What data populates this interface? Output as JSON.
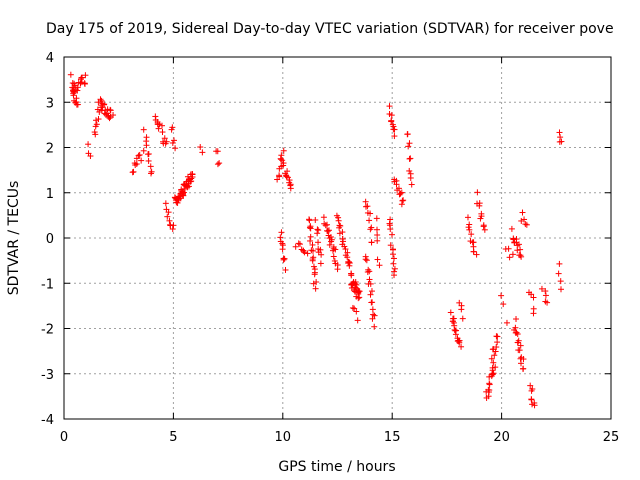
{
  "chart_data": {
    "type": "scatter",
    "title": "Day 175 of 2019, Sidereal Day-to-day VTEC variation (SDTVAR) for receiver pove",
    "xlabel": "GPS time / hours",
    "ylabel": "SDTVAR / TECUs",
    "xlim": [
      0,
      25
    ],
    "ylim": [
      -4,
      4
    ],
    "xticks": [
      "0",
      "5",
      "10",
      "15",
      "20",
      "25"
    ],
    "yticks": [
      "-4",
      "-3",
      "-2",
      "-1",
      "0",
      "1",
      "2",
      "3",
      "4"
    ],
    "grid": true,
    "marker": "plus",
    "color": "#ff0000",
    "clusters": [
      {
        "x0": 0.35,
        "x1": 0.6,
        "y0": 3.5,
        "y1": 2.9,
        "n": 14
      },
      {
        "x0": 0.4,
        "x1": 1.0,
        "y0": 3.3,
        "y1": 3.5,
        "n": 16
      },
      {
        "x0": 1.1,
        "x1": 1.25,
        "y0": 2.0,
        "y1": 1.9,
        "n": 3
      },
      {
        "x0": 1.4,
        "x1": 1.6,
        "y0": 2.3,
        "y1": 2.9,
        "n": 8
      },
      {
        "x0": 1.6,
        "x1": 2.2,
        "y0": 3.0,
        "y1": 2.7,
        "n": 22
      },
      {
        "x0": 3.1,
        "x1": 3.6,
        "y0": 1.5,
        "y1": 1.85,
        "n": 10
      },
      {
        "x0": 3.7,
        "x1": 4.0,
        "y0": 2.3,
        "y1": 1.4,
        "n": 10
      },
      {
        "x0": 4.15,
        "x1": 4.5,
        "y0": 2.65,
        "y1": 2.4,
        "n": 9
      },
      {
        "x0": 4.5,
        "x1": 4.75,
        "y0": 2.0,
        "y1": 2.2,
        "n": 5
      },
      {
        "x0": 4.9,
        "x1": 5.05,
        "y0": 2.4,
        "y1": 2.0,
        "n": 5
      },
      {
        "x0": 4.6,
        "x1": 5.0,
        "y0": 0.7,
        "y1": 0.2,
        "n": 9
      },
      {
        "x0": 5.1,
        "x1": 5.9,
        "y0": 0.8,
        "y1": 1.4,
        "n": 50
      },
      {
        "x0": 6.2,
        "x1": 6.3,
        "y0": 2.1,
        "y1": 1.8,
        "n": 2
      },
      {
        "x0": 7.0,
        "x1": 7.05,
        "y0": 2.0,
        "y1": 1.6,
        "n": 4
      },
      {
        "x0": 9.8,
        "x1": 10.0,
        "y0": 1.3,
        "y1": 1.9,
        "n": 10
      },
      {
        "x0": 10.0,
        "x1": 10.4,
        "y0": 1.6,
        "y1": 1.1,
        "n": 12
      },
      {
        "x0": 9.9,
        "x1": 10.1,
        "y0": 0.1,
        "y1": -0.6,
        "n": 10
      },
      {
        "x0": 10.6,
        "x1": 11.1,
        "y0": -0.1,
        "y1": -0.45,
        "n": 8
      },
      {
        "x0": 11.2,
        "x1": 11.5,
        "y0": 0.45,
        "y1": -1.1,
        "n": 20
      },
      {
        "x0": 11.5,
        "x1": 11.8,
        "y0": 0.3,
        "y1": -0.5,
        "n": 10
      },
      {
        "x0": 11.9,
        "x1": 12.5,
        "y0": 0.4,
        "y1": -0.6,
        "n": 22
      },
      {
        "x0": 12.5,
        "x1": 13.1,
        "y0": 0.5,
        "y1": -0.8,
        "n": 24
      },
      {
        "x0": 13.1,
        "x1": 13.5,
        "y0": -0.9,
        "y1": -1.3,
        "n": 26
      },
      {
        "x0": 13.2,
        "x1": 13.4,
        "y0": -1.6,
        "y1": -1.8,
        "n": 4
      },
      {
        "x0": 13.8,
        "x1": 14.1,
        "y0": 0.9,
        "y1": -0.1,
        "n": 10
      },
      {
        "x0": 13.8,
        "x1": 14.2,
        "y0": -0.4,
        "y1": -1.9,
        "n": 18
      },
      {
        "x0": 14.3,
        "x1": 14.4,
        "y0": 0.5,
        "y1": -0.6,
        "n": 6
      },
      {
        "x0": 14.9,
        "x1": 15.1,
        "y0": 2.85,
        "y1": 2.3,
        "n": 10
      },
      {
        "x0": 14.9,
        "x1": 15.1,
        "y0": 0.4,
        "y1": -0.9,
        "n": 14
      },
      {
        "x0": 15.1,
        "x1": 15.5,
        "y0": 1.3,
        "y1": 0.8,
        "n": 12
      },
      {
        "x0": 15.7,
        "x1": 15.9,
        "y0": 2.35,
        "y1": 1.2,
        "n": 10
      },
      {
        "x0": 17.7,
        "x1": 18.1,
        "y0": -1.7,
        "y1": -2.4,
        "n": 18
      },
      {
        "x0": 18.1,
        "x1": 18.2,
        "y0": -1.4,
        "y1": -1.8,
        "n": 4
      },
      {
        "x0": 18.5,
        "x1": 18.8,
        "y0": 0.4,
        "y1": -0.4,
        "n": 12
      },
      {
        "x0": 18.9,
        "x1": 19.2,
        "y0": 0.9,
        "y1": 0.2,
        "n": 10
      },
      {
        "x0": 19.3,
        "x1": 19.7,
        "y0": -3.5,
        "y1": -2.7,
        "n": 18
      },
      {
        "x0": 19.6,
        "x1": 19.8,
        "y0": -2.6,
        "y1": -2.2,
        "n": 8
      },
      {
        "x0": 20.0,
        "x1": 20.2,
        "y0": -1.2,
        "y1": -1.8,
        "n": 3
      },
      {
        "x0": 20.2,
        "x1": 20.5,
        "y0": -0.3,
        "y1": -0.4,
        "n": 4
      },
      {
        "x0": 20.5,
        "x1": 20.9,
        "y0": 0.1,
        "y1": -0.4,
        "n": 14
      },
      {
        "x0": 20.9,
        "x1": 21.1,
        "y0": 0.5,
        "y1": 0.2,
        "n": 5
      },
      {
        "x0": 20.6,
        "x1": 21.0,
        "y0": -1.9,
        "y1": -2.9,
        "n": 18
      },
      {
        "x0": 21.3,
        "x1": 21.5,
        "y0": -1.2,
        "y1": -1.6,
        "n": 5
      },
      {
        "x0": 21.3,
        "x1": 21.5,
        "y0": -3.3,
        "y1": -3.8,
        "n": 8
      },
      {
        "x0": 21.9,
        "x1": 22.1,
        "y0": -1.2,
        "y1": -1.5,
        "n": 5
      },
      {
        "x0": 22.6,
        "x1": 22.75,
        "y0": 2.3,
        "y1": 2.1,
        "n": 4
      },
      {
        "x0": 22.6,
        "x1": 22.75,
        "y0": -0.55,
        "y1": -1.05,
        "n": 4
      }
    ]
  }
}
